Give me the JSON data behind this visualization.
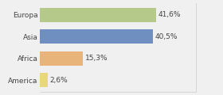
{
  "categories": [
    "Europa",
    "Asia",
    "Africa",
    "America"
  ],
  "values": [
    41.6,
    40.5,
    15.3,
    2.6
  ],
  "labels": [
    "41,6%",
    "40,5%",
    "15,3%",
    "2,6%"
  ],
  "bar_colors": [
    "#b5c98a",
    "#6e8fbf",
    "#e8b47a",
    "#e8d87a"
  ],
  "background_color": "#f0f0f0",
  "xlim": [
    0,
    56
  ],
  "bar_height": 0.65,
  "label_fontsize": 6.5,
  "category_fontsize": 6.5
}
